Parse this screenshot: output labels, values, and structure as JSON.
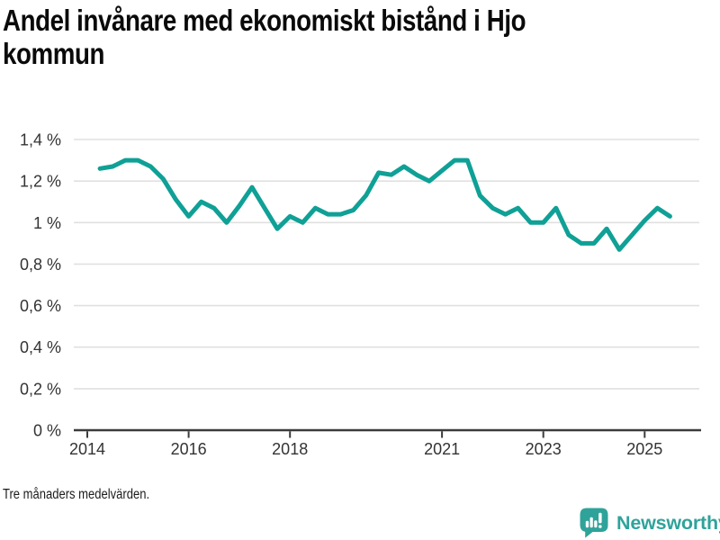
{
  "title": {
    "full": "Andel invånare med ekonomiskt bistånd i Hjo kommun",
    "lines": [
      "Andel invånare med ekonomiskt bistånd i Hjo",
      "kommun"
    ]
  },
  "footnote": "Tre månaders medelvärden.",
  "branding": {
    "name": "Newsworthy",
    "icon": "speech-bubble-bar-chart-icon",
    "color": "#2fa39a"
  },
  "chart_data": {
    "type": "line",
    "title": "Andel invånare med ekonomiskt bistånd i Hjo kommun",
    "xlabel": "",
    "ylabel": "",
    "unit": "%",
    "decimal_separator": ",",
    "grid": true,
    "legend": "none",
    "line_color": "#0fa096",
    "grid_color": "#e0e0e0",
    "axis_color": "#3b3b3b",
    "tick_label_color": "#333333",
    "xlim": [
      2013.73,
      2026.08
    ],
    "ylim": [
      0,
      1.45
    ],
    "x_ticks": [
      2014,
      2016,
      2018,
      2021,
      2023,
      2025
    ],
    "y_ticks": [
      {
        "value": 0,
        "label": "0 %"
      },
      {
        "value": 0.2,
        "label": "0,2 %"
      },
      {
        "value": 0.4,
        "label": "0,4 %"
      },
      {
        "value": 0.6,
        "label": "0,6 %"
      },
      {
        "value": 0.8,
        "label": "0,8 %"
      },
      {
        "value": 1.0,
        "label": "1 %"
      },
      {
        "value": 1.2,
        "label": "1,2 %"
      },
      {
        "value": 1.4,
        "label": "1,4 %"
      }
    ],
    "series": [
      {
        "name": "Andel invånare med ekonomiskt bistånd i Hjo kommun",
        "color": "#0fa096",
        "x": [
          2014.25,
          2014.5,
          2014.75,
          2015.0,
          2015.25,
          2015.5,
          2015.75,
          2016.0,
          2016.25,
          2016.5,
          2016.75,
          2017.0,
          2017.25,
          2017.5,
          2017.75,
          2018.0,
          2018.25,
          2018.5,
          2018.75,
          2019.0,
          2019.25,
          2019.5,
          2019.75,
          2020.0,
          2020.25,
          2020.5,
          2020.75,
          2021.0,
          2021.25,
          2021.5,
          2021.75,
          2022.0,
          2022.25,
          2022.5,
          2022.75,
          2023.0,
          2023.25,
          2023.5,
          2023.75,
          2024.0,
          2024.25,
          2024.5,
          2024.75,
          2025.0,
          2025.25,
          2025.5
        ],
        "values": [
          1.26,
          1.27,
          1.3,
          1.3,
          1.27,
          1.21,
          1.11,
          1.03,
          1.1,
          1.07,
          1.0,
          1.08,
          1.17,
          1.07,
          0.97,
          1.03,
          1.0,
          1.07,
          1.04,
          1.04,
          1.06,
          1.13,
          1.24,
          1.23,
          1.27,
          1.23,
          1.2,
          1.25,
          1.3,
          1.3,
          1.13,
          1.07,
          1.04,
          1.07,
          1.0,
          1.0,
          1.07,
          0.94,
          0.9,
          0.9,
          0.97,
          0.87,
          0.94,
          1.01,
          1.07,
          1.03
        ]
      }
    ]
  }
}
